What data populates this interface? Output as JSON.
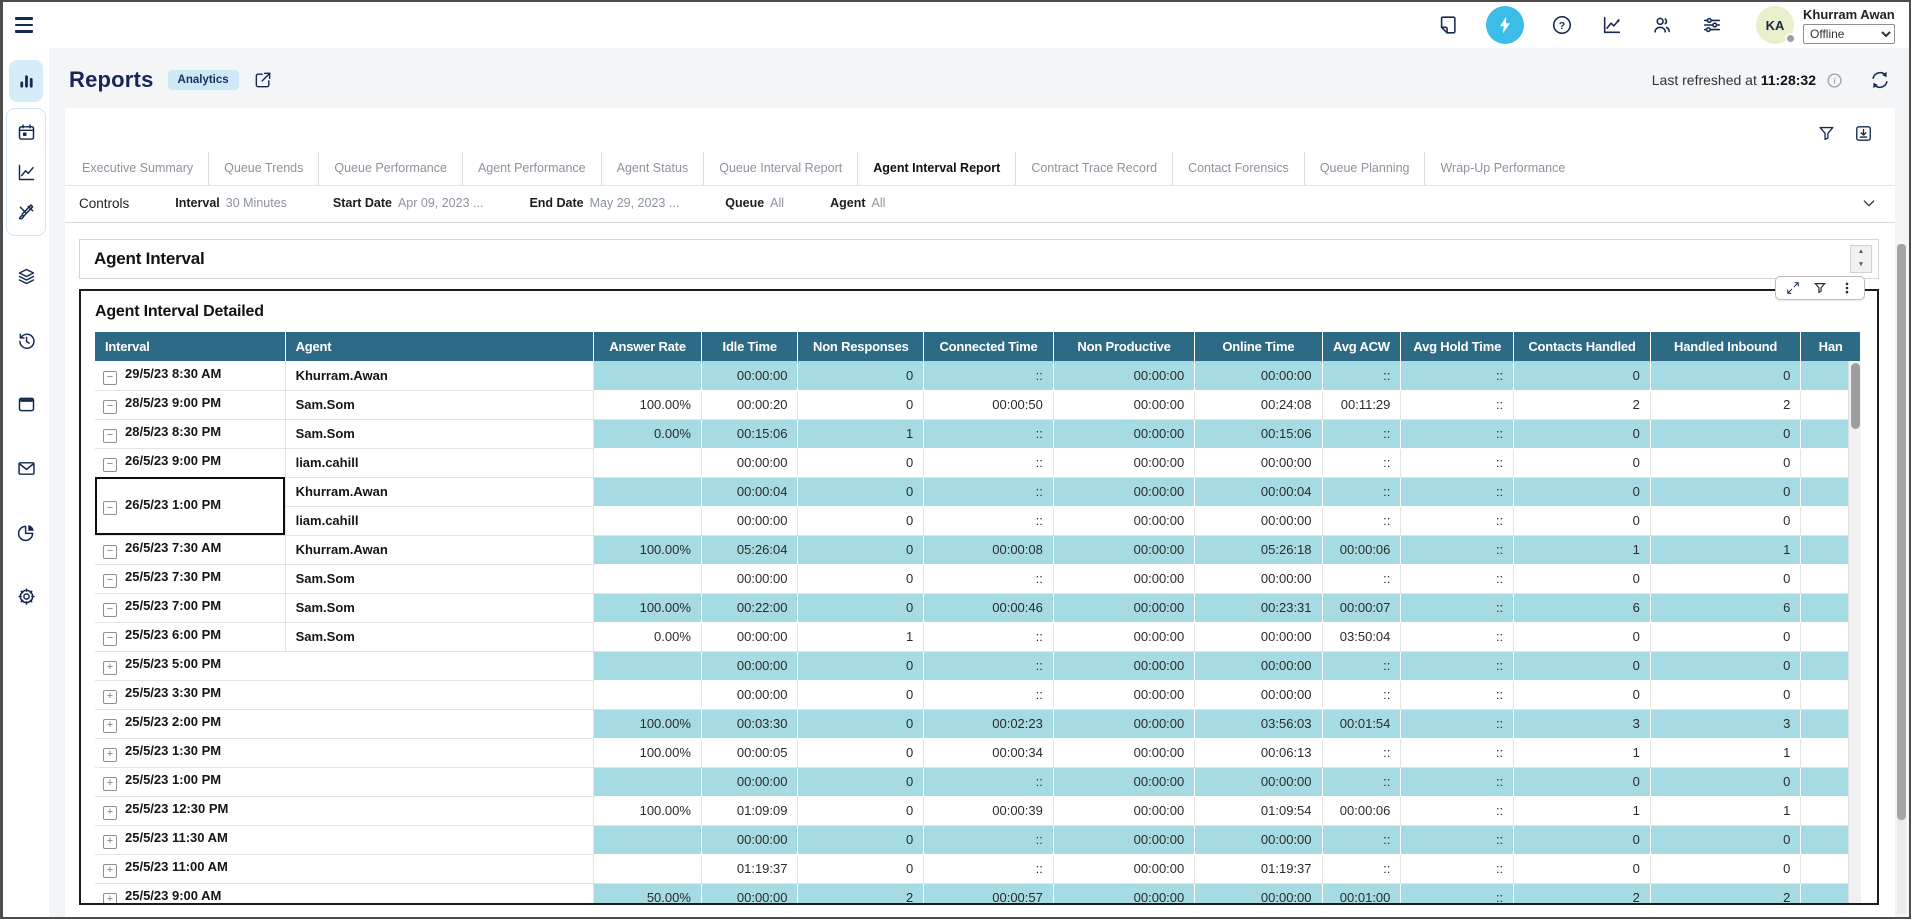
{
  "colors": {
    "header_teal": "#2d6a85",
    "row_teal": "#a6dbe3",
    "accent_blue": "#3bbde8",
    "navy": "#16294f"
  },
  "topbar": {
    "icons": [
      "hamburger-menu",
      "notes",
      "bolt",
      "help",
      "line-chart",
      "contacts",
      "sliders"
    ],
    "active_icon": "bolt",
    "user": {
      "initials": "KA",
      "name": "Khurram Awan",
      "status": "Offline"
    }
  },
  "sidebar": {
    "items": [
      {
        "icon": "bar-chart",
        "active": true
      },
      {
        "icon": "calendar",
        "active": false
      },
      {
        "icon": "line-chart",
        "active": false
      },
      {
        "icon": "design-brush",
        "active": false
      },
      {
        "icon": "layers",
        "active": false
      },
      {
        "icon": "history",
        "active": false
      },
      {
        "icon": "browser-window",
        "active": false
      },
      {
        "icon": "mail",
        "active": false
      },
      {
        "icon": "pie-chart",
        "active": false
      },
      {
        "icon": "settings-gear",
        "active": false
      }
    ]
  },
  "header": {
    "title": "Reports",
    "badge": "Analytics",
    "refresh_label": "Last refreshed at",
    "refresh_time": "11:28:32"
  },
  "tabs": [
    {
      "label": "Executive Summary",
      "active": false
    },
    {
      "label": "Queue Trends",
      "active": false
    },
    {
      "label": "Queue Performance",
      "active": false
    },
    {
      "label": "Agent Performance",
      "active": false
    },
    {
      "label": "Agent Status",
      "active": false
    },
    {
      "label": "Queue Interval Report",
      "active": false
    },
    {
      "label": "Agent Interval Report",
      "active": true
    },
    {
      "label": "Contract Trace Record",
      "active": false
    },
    {
      "label": "Contact Forensics",
      "active": false
    },
    {
      "label": "Queue Planning",
      "active": false
    },
    {
      "label": "Wrap-Up Performance",
      "active": false
    }
  ],
  "controls": {
    "title": "Controls",
    "filters": [
      {
        "label": "Interval",
        "value": "30 Minutes"
      },
      {
        "label": "Start Date",
        "value": "Apr 09, 2023 ..."
      },
      {
        "label": "End Date",
        "value": "May 29, 2023 ..."
      },
      {
        "label": "Queue",
        "value": "All"
      },
      {
        "label": "Agent",
        "value": "All"
      }
    ]
  },
  "report": {
    "section_title": "Agent Interval",
    "table_title": "Agent Interval Detailed",
    "toolbar_icons": [
      "expand",
      "filter",
      "kebab-menu"
    ]
  },
  "table": {
    "columns": [
      "Interval",
      "Agent",
      "Answer Rate",
      "Idle Time",
      "Non Responses",
      "Connected Time",
      "Non Productive",
      "Online Time",
      "Avg ACW",
      "Avg Hold Time",
      "Contacts Handled",
      "Handled Inbound",
      "Han"
    ],
    "rows": [
      {
        "expand": "minus",
        "interval": "29/5/23 8:30 AM",
        "agent": "Khurram.Awan",
        "cells": [
          "",
          "00:00:00",
          "0",
          "::",
          "00:00:00",
          "00:00:00",
          "::",
          "::",
          "0",
          "0"
        ]
      },
      {
        "expand": "minus",
        "interval": "28/5/23 9:00 PM",
        "agent": "Sam.Som",
        "cells": [
          "100.00%",
          "00:00:20",
          "0",
          "00:00:50",
          "00:00:00",
          "00:24:08",
          "00:11:29",
          "::",
          "2",
          "2"
        ]
      },
      {
        "expand": "minus",
        "interval": "28/5/23 8:30 PM",
        "agent": "Sam.Som",
        "cells": [
          "0.00%",
          "00:15:06",
          "1",
          "::",
          "00:00:00",
          "00:15:06",
          "::",
          "::",
          "0",
          "0"
        ]
      },
      {
        "expand": "minus",
        "interval": "26/5/23 9:00 PM",
        "agent": "liam.cahill",
        "cells": [
          "",
          "00:00:00",
          "0",
          "::",
          "00:00:00",
          "00:00:00",
          "::",
          "::",
          "0",
          "0"
        ]
      },
      {
        "expand": "minus",
        "interval": "26/5/23 1:00 PM",
        "agent": "Khurram.Awan",
        "span": 2,
        "selected": true,
        "cells": [
          "",
          "00:00:04",
          "0",
          "::",
          "00:00:00",
          "00:00:04",
          "::",
          "::",
          "0",
          "0"
        ]
      },
      {
        "expand": null,
        "interval": null,
        "agent": "liam.cahill",
        "cells": [
          "",
          "00:00:00",
          "0",
          "::",
          "00:00:00",
          "00:00:00",
          "::",
          "::",
          "0",
          "0"
        ]
      },
      {
        "expand": "minus",
        "interval": "26/5/23 7:30 AM",
        "agent": "Khurram.Awan",
        "cells": [
          "100.00%",
          "05:26:04",
          "0",
          "00:00:08",
          "00:00:00",
          "05:26:18",
          "00:00:06",
          "::",
          "1",
          "1"
        ]
      },
      {
        "expand": "minus",
        "interval": "25/5/23 7:30 PM",
        "agent": "Sam.Som",
        "cells": [
          "",
          "00:00:00",
          "0",
          "::",
          "00:00:00",
          "00:00:00",
          "::",
          "::",
          "0",
          "0"
        ]
      },
      {
        "expand": "minus",
        "interval": "25/5/23 7:00 PM",
        "agent": "Sam.Som",
        "cells": [
          "100.00%",
          "00:22:00",
          "0",
          "00:00:46",
          "00:00:00",
          "00:23:31",
          "00:00:07",
          "::",
          "6",
          "6"
        ]
      },
      {
        "expand": "minus",
        "interval": "25/5/23 6:00 PM",
        "agent": "Sam.Som",
        "cells": [
          "0.00%",
          "00:00:00",
          "1",
          "::",
          "00:00:00",
          "00:00:00",
          "03:50:04",
          "::",
          "0",
          "0"
        ]
      },
      {
        "expand": "plus",
        "interval": "25/5/23 5:00 PM",
        "agent": null,
        "cells": [
          "",
          "00:00:00",
          "0",
          "::",
          "00:00:00",
          "00:00:00",
          "::",
          "::",
          "0",
          "0"
        ]
      },
      {
        "expand": "plus",
        "interval": "25/5/23 3:30 PM",
        "agent": null,
        "cells": [
          "",
          "00:00:00",
          "0",
          "::",
          "00:00:00",
          "00:00:00",
          "::",
          "::",
          "0",
          "0"
        ]
      },
      {
        "expand": "plus",
        "interval": "25/5/23 2:00 PM",
        "agent": null,
        "cells": [
          "100.00%",
          "00:03:30",
          "0",
          "00:02:23",
          "00:00:00",
          "03:56:03",
          "00:01:54",
          "::",
          "3",
          "3"
        ]
      },
      {
        "expand": "plus",
        "interval": "25/5/23 1:30 PM",
        "agent": null,
        "cells": [
          "100.00%",
          "00:00:05",
          "0",
          "00:00:34",
          "00:00:00",
          "00:06:13",
          "::",
          "::",
          "1",
          "1"
        ]
      },
      {
        "expand": "plus",
        "interval": "25/5/23 1:00 PM",
        "agent": null,
        "cells": [
          "",
          "00:00:00",
          "0",
          "::",
          "00:00:00",
          "00:00:00",
          "::",
          "::",
          "0",
          "0"
        ]
      },
      {
        "expand": "plus",
        "interval": "25/5/23 12:30 PM",
        "agent": null,
        "cells": [
          "100.00%",
          "01:09:09",
          "0",
          "00:00:39",
          "00:00:00",
          "01:09:54",
          "00:00:06",
          "::",
          "1",
          "1"
        ]
      },
      {
        "expand": "plus",
        "interval": "25/5/23 11:30 AM",
        "agent": null,
        "cells": [
          "",
          "00:00:00",
          "0",
          "::",
          "00:00:00",
          "00:00:00",
          "::",
          "::",
          "0",
          "0"
        ]
      },
      {
        "expand": "plus",
        "interval": "25/5/23 11:00 AM",
        "agent": null,
        "cells": [
          "",
          "01:19:37",
          "0",
          "::",
          "00:00:00",
          "01:19:37",
          "::",
          "::",
          "0",
          "0"
        ]
      },
      {
        "expand": "plus",
        "interval": "25/5/23 9:00 AM",
        "agent": null,
        "cells": [
          "50.00%",
          "00:00:00",
          "2",
          "00:00:57",
          "00:00:00",
          "00:00:00",
          "00:01:00",
          "::",
          "2",
          "2"
        ]
      }
    ]
  }
}
